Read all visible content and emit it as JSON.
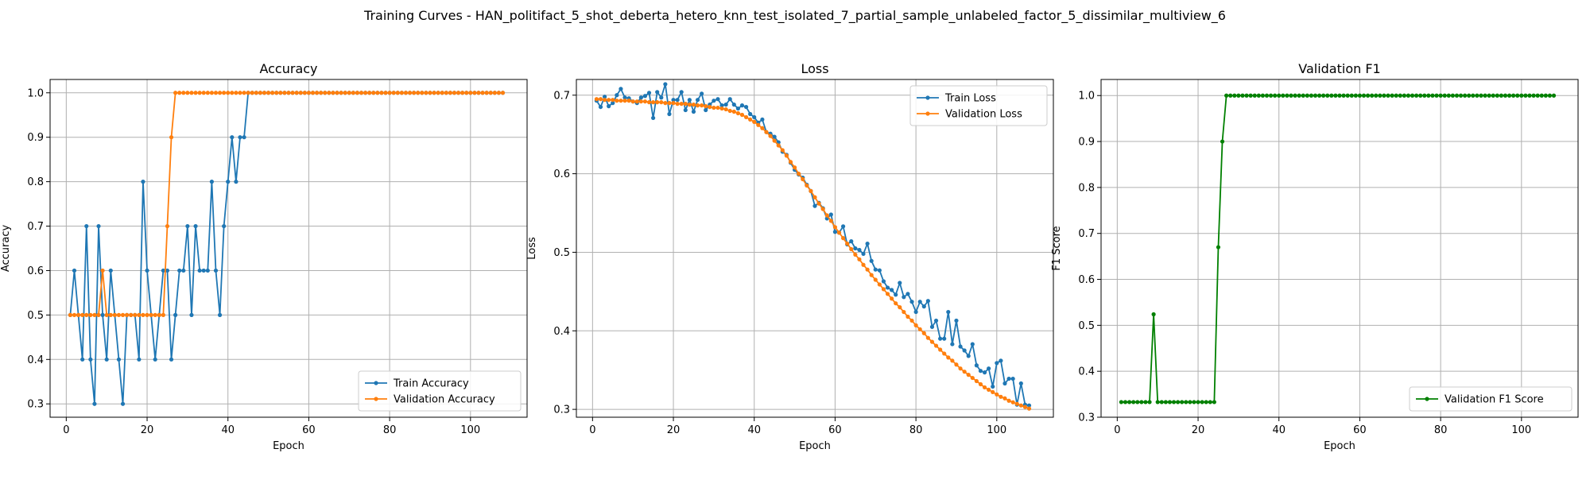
{
  "figure": {
    "suptitle": "Training Curves - HAN_politifact_5_shot_deberta_hetero_knn_test_isolated_7_partial_sample_unlabeled_factor_5_dissimilar_multiview_6"
  },
  "chart_data": [
    {
      "type": "line",
      "title": "Accuracy",
      "xlabel": "Epoch",
      "ylabel": "Accuracy",
      "xlim": [
        -4,
        114
      ],
      "ylim": [
        0.27,
        1.03
      ],
      "xticks": [
        0,
        20,
        40,
        60,
        80,
        100
      ],
      "yticks": [
        0.3,
        0.4,
        0.5,
        0.6,
        0.7,
        0.8,
        0.9,
        1.0
      ],
      "grid": true,
      "legend_loc": "lower-right",
      "series": [
        {
          "name": "Train Accuracy",
          "color": "#1f77b4",
          "x_start": 1,
          "values": [
            0.5,
            0.6,
            0.5,
            0.4,
            0.7,
            0.4,
            0.3,
            0.7,
            0.5,
            0.4,
            0.6,
            0.5,
            0.4,
            0.3,
            0.5,
            0.5,
            0.5,
            0.4,
            0.8,
            0.6,
            0.5,
            0.4,
            0.5,
            0.6,
            0.6,
            0.4,
            0.5,
            0.6,
            0.6,
            0.7,
            0.5,
            0.7,
            0.6,
            0.6,
            0.6,
            0.8,
            0.6,
            0.5,
            0.7,
            0.8,
            0.9,
            0.8,
            0.9,
            0.9,
            1.0,
            1.0,
            1.0,
            1.0,
            1.0,
            1.0,
            1.0,
            1.0,
            1.0,
            1.0,
            1.0,
            1.0,
            1.0,
            1.0,
            1.0,
            1.0,
            1.0,
            1.0,
            1.0,
            1.0,
            1.0,
            1.0,
            1.0,
            1.0,
            1.0,
            1.0,
            1.0,
            1.0,
            1.0,
            1.0,
            1.0,
            1.0,
            1.0,
            1.0,
            1.0,
            1.0,
            1.0,
            1.0,
            1.0,
            1.0,
            1.0,
            1.0,
            1.0,
            1.0,
            1.0,
            1.0,
            1.0,
            1.0,
            1.0,
            1.0,
            1.0,
            1.0,
            1.0,
            1.0,
            1.0,
            1.0,
            1.0,
            1.0,
            1.0,
            1.0,
            1.0,
            1.0,
            1.0,
            1.0
          ]
        },
        {
          "name": "Validation Accuracy",
          "color": "#ff7f0e",
          "x_start": 1,
          "values": [
            0.5,
            0.5,
            0.5,
            0.5,
            0.5,
            0.5,
            0.5,
            0.5,
            0.6,
            0.5,
            0.5,
            0.5,
            0.5,
            0.5,
            0.5,
            0.5,
            0.5,
            0.5,
            0.5,
            0.5,
            0.5,
            0.5,
            0.5,
            0.5,
            0.7,
            0.9,
            1.0,
            1.0,
            1.0,
            1.0,
            1.0,
            1.0,
            1.0,
            1.0,
            1.0,
            1.0,
            1.0,
            1.0,
            1.0,
            1.0,
            1.0,
            1.0,
            1.0,
            1.0,
            1.0,
            1.0,
            1.0,
            1.0,
            1.0,
            1.0,
            1.0,
            1.0,
            1.0,
            1.0,
            1.0,
            1.0,
            1.0,
            1.0,
            1.0,
            1.0,
            1.0,
            1.0,
            1.0,
            1.0,
            1.0,
            1.0,
            1.0,
            1.0,
            1.0,
            1.0,
            1.0,
            1.0,
            1.0,
            1.0,
            1.0,
            1.0,
            1.0,
            1.0,
            1.0,
            1.0,
            1.0,
            1.0,
            1.0,
            1.0,
            1.0,
            1.0,
            1.0,
            1.0,
            1.0,
            1.0,
            1.0,
            1.0,
            1.0,
            1.0,
            1.0,
            1.0,
            1.0,
            1.0,
            1.0,
            1.0,
            1.0,
            1.0,
            1.0,
            1.0,
            1.0,
            1.0,
            1.0,
            1.0
          ]
        }
      ]
    },
    {
      "type": "line",
      "title": "Loss",
      "xlabel": "Epoch",
      "ylabel": "Loss",
      "xlim": [
        -4,
        114
      ],
      "ylim": [
        0.29,
        0.72
      ],
      "xticks": [
        0,
        20,
        40,
        60,
        80,
        100
      ],
      "yticks": [
        0.3,
        0.4,
        0.5,
        0.6,
        0.7
      ],
      "grid": true,
      "legend_loc": "upper-right",
      "series": [
        {
          "name": "Train Loss",
          "color": "#1f77b4",
          "x_start": 1,
          "values": [
            0.693,
            0.685,
            0.698,
            0.686,
            0.69,
            0.7,
            0.708,
            0.697,
            0.696,
            0.692,
            0.69,
            0.697,
            0.699,
            0.703,
            0.671,
            0.704,
            0.697,
            0.714,
            0.676,
            0.694,
            0.694,
            0.704,
            0.681,
            0.694,
            0.679,
            0.694,
            0.702,
            0.681,
            0.688,
            0.693,
            0.695,
            0.687,
            0.688,
            0.695,
            0.688,
            0.683,
            0.687,
            0.685,
            0.676,
            0.672,
            0.665,
            0.669,
            0.653,
            0.651,
            0.647,
            0.64,
            0.628,
            0.624,
            0.614,
            0.605,
            0.599,
            0.595,
            0.586,
            0.578,
            0.559,
            0.563,
            0.556,
            0.543,
            0.548,
            0.526,
            0.525,
            0.533,
            0.51,
            0.514,
            0.505,
            0.503,
            0.498,
            0.511,
            0.489,
            0.478,
            0.477,
            0.463,
            0.455,
            0.452,
            0.446,
            0.461,
            0.443,
            0.447,
            0.437,
            0.424,
            0.437,
            0.431,
            0.438,
            0.405,
            0.413,
            0.39,
            0.39,
            0.424,
            0.383,
            0.413,
            0.38,
            0.375,
            0.368,
            0.383,
            0.356,
            0.349,
            0.347,
            0.352,
            0.329,
            0.359,
            0.362,
            0.333,
            0.339,
            0.339,
            0.306,
            0.333,
            0.306,
            0.305
          ]
        },
        {
          "name": "Validation Loss",
          "color": "#ff7f0e",
          "x_start": 1,
          "values": [
            0.695,
            0.695,
            0.694,
            0.694,
            0.694,
            0.693,
            0.693,
            0.693,
            0.693,
            0.692,
            0.692,
            0.692,
            0.692,
            0.691,
            0.691,
            0.691,
            0.691,
            0.69,
            0.69,
            0.69,
            0.689,
            0.689,
            0.689,
            0.688,
            0.688,
            0.687,
            0.687,
            0.686,
            0.685,
            0.684,
            0.684,
            0.683,
            0.682,
            0.68,
            0.679,
            0.677,
            0.675,
            0.672,
            0.669,
            0.666,
            0.662,
            0.658,
            0.653,
            0.648,
            0.642,
            0.636,
            0.63,
            0.623,
            0.615,
            0.608,
            0.6,
            0.593,
            0.585,
            0.578,
            0.57,
            0.562,
            0.555,
            0.547,
            0.54,
            0.532,
            0.525,
            0.518,
            0.511,
            0.504,
            0.497,
            0.491,
            0.484,
            0.478,
            0.471,
            0.465,
            0.459,
            0.453,
            0.447,
            0.441,
            0.435,
            0.43,
            0.424,
            0.418,
            0.413,
            0.407,
            0.402,
            0.397,
            0.391,
            0.386,
            0.381,
            0.376,
            0.371,
            0.366,
            0.362,
            0.357,
            0.352,
            0.348,
            0.344,
            0.34,
            0.336,
            0.332,
            0.328,
            0.325,
            0.322,
            0.319,
            0.316,
            0.314,
            0.311,
            0.309,
            0.307,
            0.305,
            0.303,
            0.301
          ]
        }
      ]
    },
    {
      "type": "line",
      "title": "Validation F1",
      "xlabel": "Epoch",
      "ylabel": "F1 Score",
      "xlim": [
        -4,
        114
      ],
      "ylim": [
        0.3,
        1.035
      ],
      "xticks": [
        0,
        20,
        40,
        60,
        80,
        100
      ],
      "yticks": [
        0.3,
        0.4,
        0.5,
        0.6,
        0.7,
        0.8,
        0.9,
        1.0
      ],
      "grid": true,
      "legend_loc": "lower-right",
      "series": [
        {
          "name": "Validation F1 Score",
          "color": "#008000",
          "x_start": 1,
          "values": [
            0.333,
            0.333,
            0.333,
            0.333,
            0.333,
            0.333,
            0.333,
            0.333,
            0.524,
            0.333,
            0.333,
            0.333,
            0.333,
            0.333,
            0.333,
            0.333,
            0.333,
            0.333,
            0.333,
            0.333,
            0.333,
            0.333,
            0.333,
            0.333,
            0.67,
            0.9,
            1.0,
            1.0,
            1.0,
            1.0,
            1.0,
            1.0,
            1.0,
            1.0,
            1.0,
            1.0,
            1.0,
            1.0,
            1.0,
            1.0,
            1.0,
            1.0,
            1.0,
            1.0,
            1.0,
            1.0,
            1.0,
            1.0,
            1.0,
            1.0,
            1.0,
            1.0,
            1.0,
            1.0,
            1.0,
            1.0,
            1.0,
            1.0,
            1.0,
            1.0,
            1.0,
            1.0,
            1.0,
            1.0,
            1.0,
            1.0,
            1.0,
            1.0,
            1.0,
            1.0,
            1.0,
            1.0,
            1.0,
            1.0,
            1.0,
            1.0,
            1.0,
            1.0,
            1.0,
            1.0,
            1.0,
            1.0,
            1.0,
            1.0,
            1.0,
            1.0,
            1.0,
            1.0,
            1.0,
            1.0,
            1.0,
            1.0,
            1.0,
            1.0,
            1.0,
            1.0,
            1.0,
            1.0,
            1.0,
            1.0,
            1.0,
            1.0,
            1.0,
            1.0,
            1.0,
            1.0,
            1.0,
            1.0
          ]
        }
      ]
    }
  ]
}
